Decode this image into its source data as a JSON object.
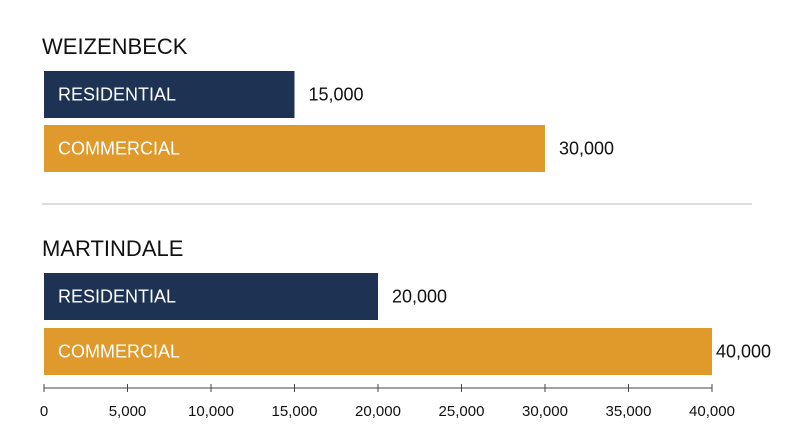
{
  "chart_data": {
    "type": "bar",
    "orientation": "horizontal",
    "groups": [
      {
        "title": "WEIZENBECK",
        "bars": [
          {
            "label": "RESIDENTIAL",
            "value": 15000,
            "value_label": "15,000",
            "color": "#1e3354"
          },
          {
            "label": "COMMERCIAL",
            "value": 30000,
            "value_label": "30,000",
            "color": "#e09a2c"
          }
        ]
      },
      {
        "title": "MARTINDALE",
        "bars": [
          {
            "label": "RESIDENTIAL",
            "value": 20000,
            "value_label": "20,000",
            "color": "#1e3354"
          },
          {
            "label": "COMMERCIAL",
            "value": 40000,
            "value_label": "40,000",
            "color": "#e09a2c"
          }
        ]
      }
    ],
    "xlim": [
      0,
      40000
    ],
    "xticks": [
      0,
      5000,
      10000,
      15000,
      20000,
      25000,
      30000,
      35000,
      40000
    ],
    "xtick_labels": [
      "0",
      "5,000",
      "10,000",
      "15,000",
      "20,000",
      "25,000",
      "30,000",
      "35,000",
      "40,000"
    ],
    "grid": false
  }
}
